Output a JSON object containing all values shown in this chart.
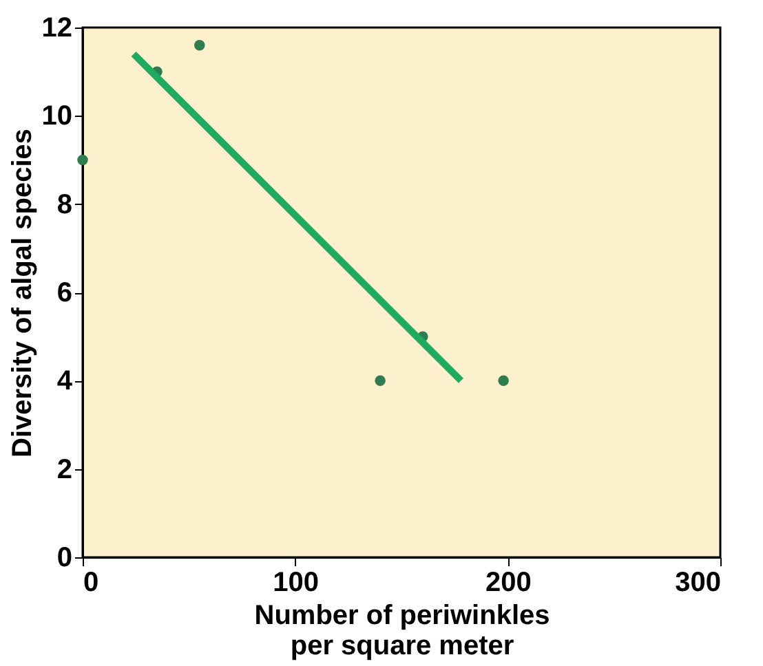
{
  "chart_data": {
    "type": "scatter",
    "xlabel": "Number of periwinkles per square meter",
    "ylabel": "Diversity of algal species",
    "xlim": [
      0,
      300
    ],
    "ylim": [
      0,
      12
    ],
    "xticks": [
      0,
      100,
      200,
      300
    ],
    "yticks": [
      0,
      2,
      4,
      6,
      8,
      10,
      12
    ],
    "grid": false,
    "marker": "circle",
    "series": [
      {
        "color": "#2e7d4f",
        "x": [
          0,
          35,
          55,
          140,
          160,
          198
        ],
        "values": [
          9,
          11,
          11.6,
          4,
          5,
          4
        ]
      },
      {
        "type": "line",
        "color": "#1faa5f",
        "x": [
          24,
          178
        ],
        "values": [
          11.4,
          4
        ],
        "line_style": "solid",
        "marker": "none"
      }
    ]
  }
}
